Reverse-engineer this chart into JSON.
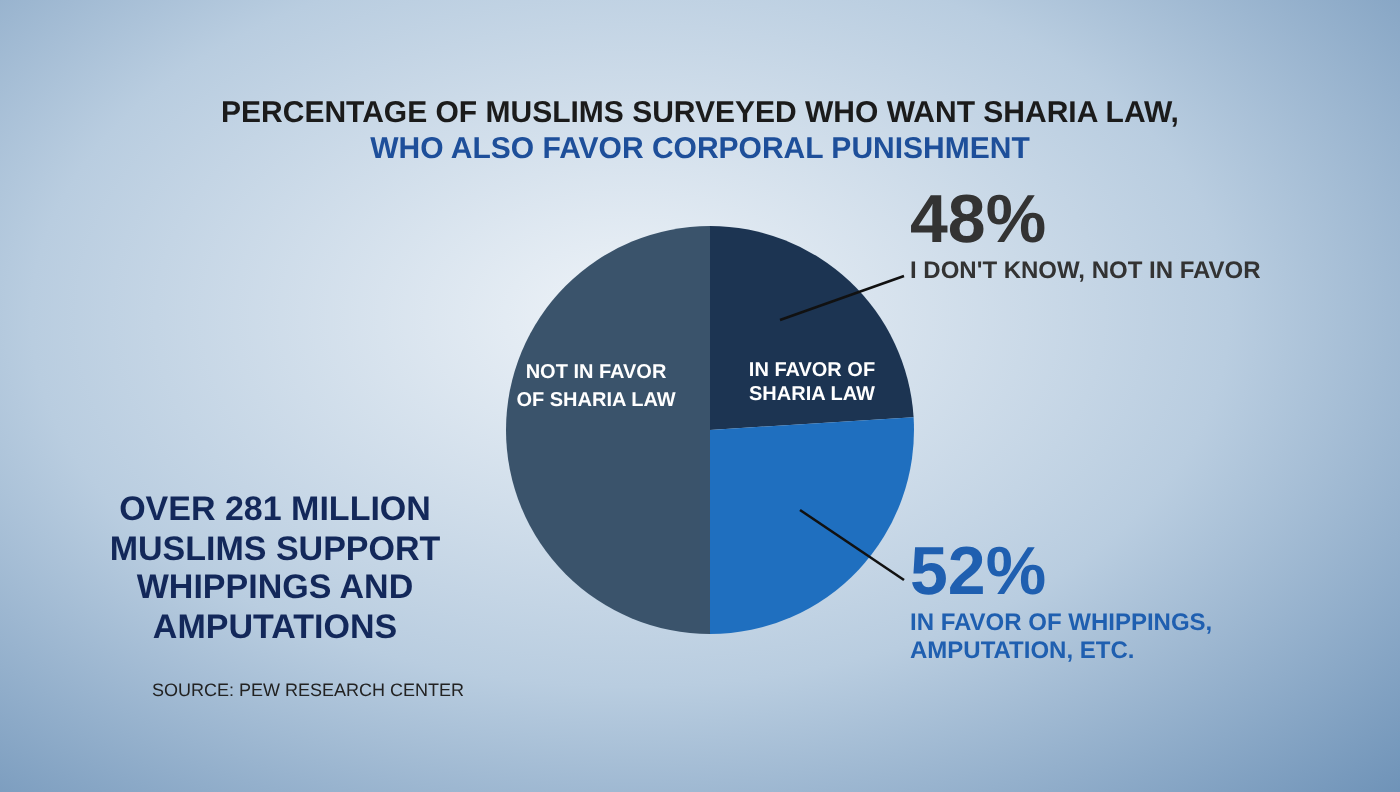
{
  "chart_data": {
    "type": "pie",
    "title": "PERCENTAGE OF MUSLIMS SURVEYED WHO WANT SHARIA LAW,",
    "subtitle": "WHO ALSO FAVOR CORPORAL PUNISHMENT",
    "categories": [
      "I DON'T KNOW, NOT IN FAVOR",
      "IN FAVOR OF WHIPPINGS, AMPUTATION, ETC.",
      "NOT IN FAVOR OF SHARIA LAW"
    ],
    "values": [
      48,
      52,
      100
    ],
    "value_labels": [
      "48%",
      "52%",
      null
    ],
    "colors": [
      "#1c3452",
      "#1f6fbf",
      "#3a536b"
    ],
    "annotations": [
      "IN FAVOR OF SHARIA LAW",
      "OVER 281 MILLION MUSLIMS SUPPORT WHIPPINGS AND AMPUTATIONS",
      "SOURCE: PEW RESEARCH CENTER"
    ]
  }
}
